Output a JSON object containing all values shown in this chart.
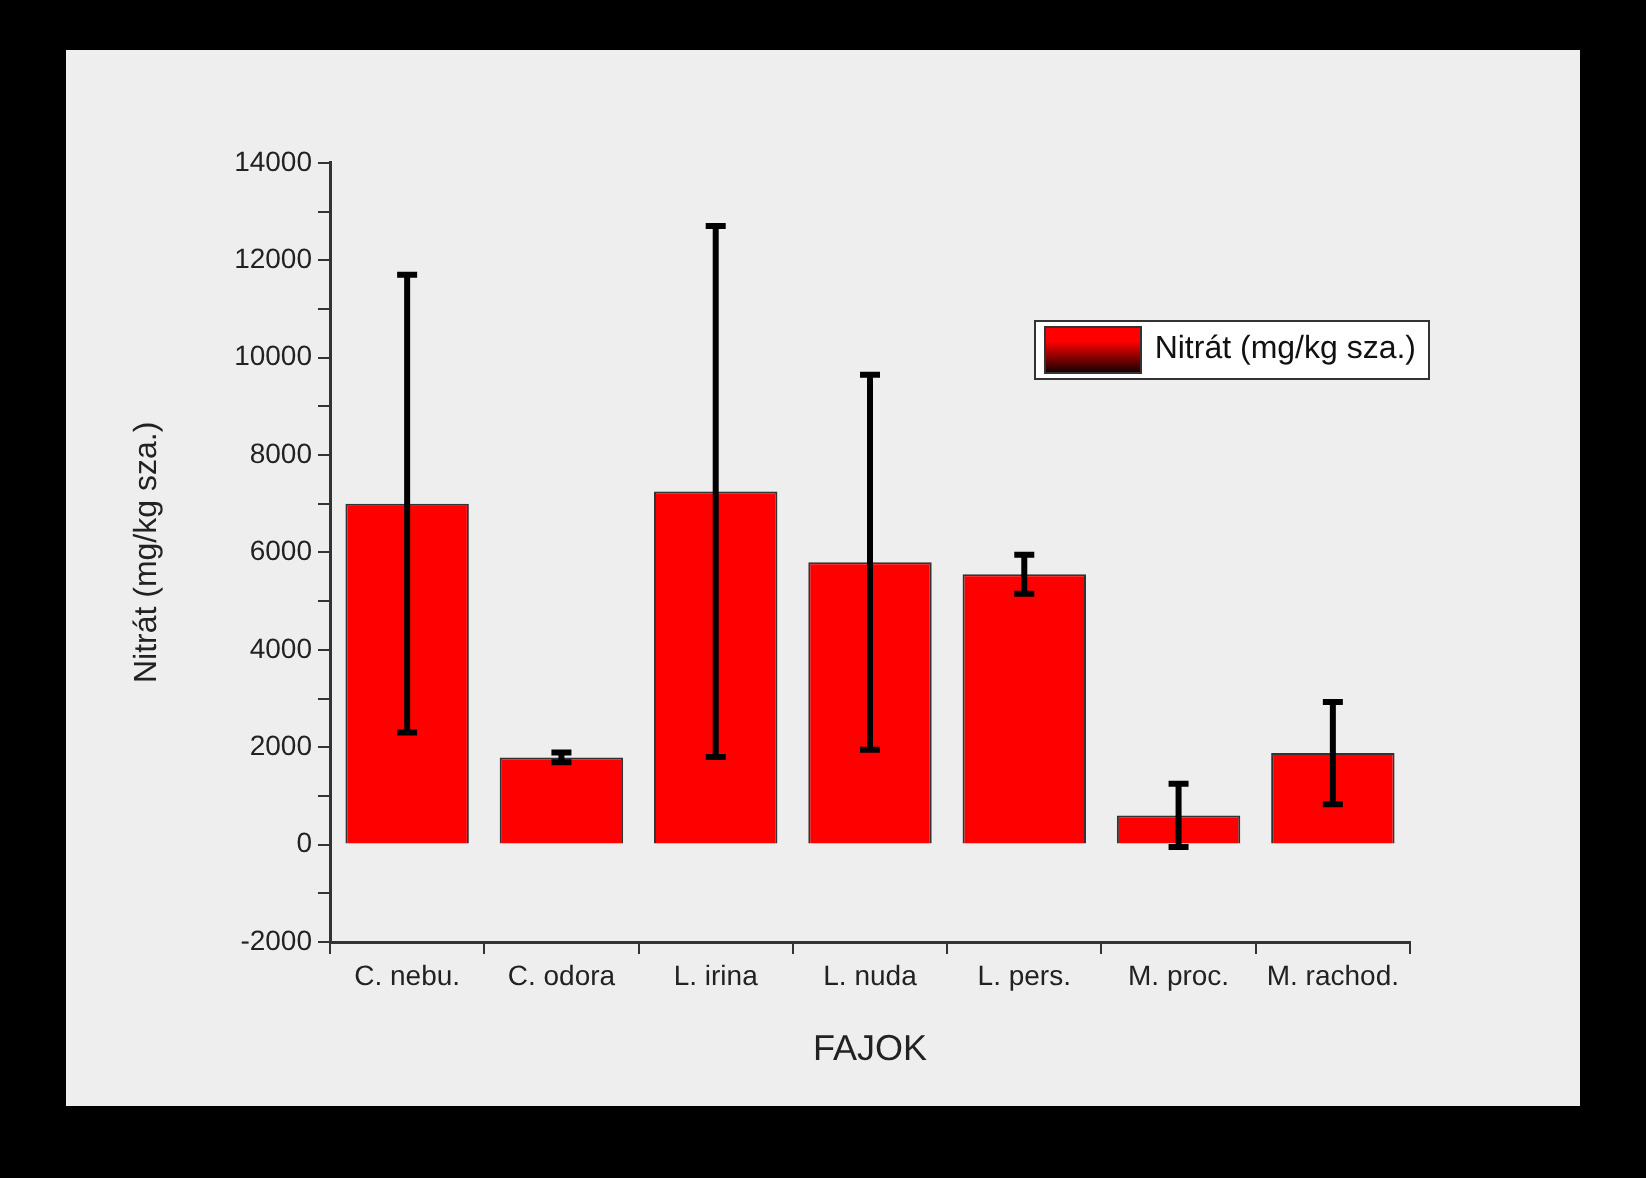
{
  "chart_data": {
    "type": "bar",
    "xlabel": "FAJOK",
    "ylabel": "Nitrát (mg/kg sza.)",
    "categories": [
      "C. nebu.",
      "C. odora",
      "L. irina",
      "L. nuda",
      "L. pers.",
      "M. proc.",
      "M. rachod."
    ],
    "series": [
      {
        "name": "Nitrát (mg/kg sza.)",
        "color": "#ff0000",
        "values": [
          7000,
          1790,
          7250,
          5800,
          5550,
          600,
          1880
        ],
        "errors": [
          4700,
          100,
          5450,
          3850,
          400,
          650,
          1050
        ]
      }
    ],
    "ylim": [
      -2000,
      14000
    ],
    "yticks": [
      -2000,
      {
        "value": -1000,
        "label": null
      },
      0,
      {
        "value": 1000,
        "label": null
      },
      2000,
      {
        "value": 3000,
        "label": null
      },
      4000,
      {
        "value": 5000,
        "label": null
      },
      6000,
      {
        "value": 7000,
        "label": null
      },
      8000,
      {
        "value": 9000,
        "label": null
      },
      10000,
      {
        "value": 11000,
        "label": null
      },
      12000,
      {
        "value": 13000,
        "label": null
      },
      14000
    ],
    "grid": false,
    "legend": "top right"
  }
}
